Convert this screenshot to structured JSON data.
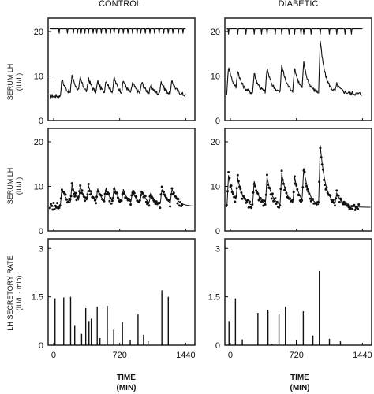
{
  "columns": [
    {
      "title": "CONTROL"
    },
    {
      "title": "DIABETIC"
    }
  ],
  "rows": [
    {
      "ylabel_line1": "SERUM LH",
      "ylabel_line2": "(IU/L)"
    },
    {
      "ylabel_line1": "SERUM LH",
      "ylabel_line2": "(IU/L)"
    },
    {
      "ylabel_line1": "LH SECRETORY RATE",
      "ylabel_line2": "(IU/L · min)"
    }
  ],
  "xaxis": {
    "label_line1": "TIME",
    "label_line2": "(MIN)",
    "ticks": [
      0,
      720,
      1440
    ],
    "range": [
      -60,
      1540
    ]
  },
  "chart_data": [
    {
      "id": "control-serum",
      "type": "line",
      "column": "CONTROL",
      "ylim": [
        0,
        23
      ],
      "yticks": [
        0,
        10,
        20
      ],
      "xlim": [
        -60,
        1540
      ],
      "baseline": 5.5,
      "pulses": [
        [
          90,
          9.3
        ],
        [
          200,
          9.8
        ],
        [
          290,
          8.6
        ],
        [
          380,
          8.8
        ],
        [
          480,
          8.2
        ],
        [
          570,
          8.6
        ],
        [
          660,
          8.9
        ],
        [
          760,
          8.4
        ],
        [
          860,
          8.0
        ],
        [
          960,
          8.2
        ],
        [
          1060,
          7.4
        ],
        [
          1170,
          8.6
        ],
        [
          1290,
          8.7
        ]
      ],
      "series": [
        {
          "values_source": "pulses"
        }
      ],
      "marker_train": {
        "level": 20.6,
        "depth": 1.0,
        "positions": [
          60,
          150,
          215,
          260,
          300,
          340,
          380,
          430,
          470,
          520,
          570,
          620,
          660,
          710,
          760,
          810,
          860,
          910,
          950,
          1000,
          1050,
          1100,
          1150,
          1200,
          1250,
          1300,
          1360,
          1410
        ]
      }
    },
    {
      "id": "diabetic-serum",
      "type": "line",
      "column": "DIABETIC",
      "ylim": [
        0,
        23
      ],
      "yticks": [
        0,
        10,
        20
      ],
      "xlim": [
        -60,
        1540
      ],
      "baseline": 6.0,
      "pulses": [
        [
          -20,
          12.5
        ],
        [
          80,
          10.3
        ],
        [
          260,
          10.5
        ],
        [
          400,
          11.5
        ],
        [
          560,
          12.3
        ],
        [
          700,
          11.5
        ],
        [
          800,
          12.0
        ],
        [
          980,
          17.7
        ],
        [
          1160,
          7.7
        ]
      ],
      "series": [
        {
          "values_source": "pulses"
        }
      ],
      "marker_train": {
        "level": 20.6,
        "depth": 1.2,
        "positions": [
          -20,
          80,
          170,
          260,
          340,
          400,
          490,
          560,
          640,
          700,
          770,
          800,
          880,
          980,
          1080,
          1160,
          1250,
          1320
        ]
      }
    },
    {
      "id": "control-fit",
      "type": "scatter",
      "column": "CONTROL",
      "ylim": [
        0,
        23
      ],
      "yticks": [
        0,
        10,
        20
      ],
      "xlim": [
        -60,
        1540
      ],
      "baseline": 5.5,
      "pulses": [
        [
          90,
          9.5
        ],
        [
          200,
          9.8
        ],
        [
          290,
          9.0
        ],
        [
          380,
          9.2
        ],
        [
          480,
          8.6
        ],
        [
          570,
          8.8
        ],
        [
          660,
          9.0
        ],
        [
          760,
          8.5
        ],
        [
          860,
          8.2
        ],
        [
          960,
          8.4
        ],
        [
          1060,
          7.8
        ],
        [
          1180,
          8.9
        ],
        [
          1290,
          8.8
        ]
      ],
      "series": [
        {
          "name": "",
          "values_source": "pulses"
        }
      ]
    },
    {
      "id": "diabetic-fit",
      "type": "scatter",
      "column": "DIABETIC",
      "ylim": [
        0,
        23
      ],
      "yticks": [
        0,
        10,
        20
      ],
      "xlim": [
        -60,
        1540
      ],
      "baseline": 5.3,
      "pulses": [
        [
          -20,
          12.5
        ],
        [
          80,
          10.6
        ],
        [
          260,
          10.8
        ],
        [
          400,
          11.5
        ],
        [
          560,
          12.5
        ],
        [
          700,
          11.4
        ],
        [
          800,
          12.8
        ],
        [
          980,
          18.8
        ],
        [
          1160,
          7.8
        ]
      ],
      "series": [
        {
          "name": "",
          "values_source": "pulses"
        }
      ]
    },
    {
      "id": "control-secretion",
      "type": "bar",
      "column": "CONTROL",
      "ylim": [
        0,
        3.3
      ],
      "yticks": [
        0,
        1.5,
        3
      ],
      "xlim": [
        -60,
        1540
      ],
      "x": [
        15,
        110,
        185,
        230,
        305,
        350,
        385,
        410,
        475,
        505,
        585,
        655,
        750,
        835,
        920,
        980,
        1030,
        1180,
        1250
      ],
      "values": [
        1.45,
        1.48,
        1.5,
        0.6,
        0.35,
        1.15,
        0.75,
        0.82,
        1.2,
        0.22,
        1.22,
        0.48,
        0.72,
        0.15,
        0.95,
        0.32,
        0.12,
        1.7,
        1.5
      ]
    },
    {
      "id": "diabetic-secretion",
      "type": "bar",
      "column": "DIABETIC",
      "ylim": [
        0,
        3.3
      ],
      "yticks": [
        0,
        1.5,
        3
      ],
      "xlim": [
        -60,
        1540
      ],
      "x": [
        -15,
        55,
        130,
        300,
        410,
        455,
        530,
        600,
        720,
        795,
        900,
        970,
        1080,
        1200
      ],
      "values": [
        0.75,
        1.45,
        0.18,
        1.0,
        1.1,
        0.05,
        0.98,
        1.2,
        0.15,
        1.05,
        0.3,
        2.3,
        0.2,
        0.12
      ]
    }
  ]
}
